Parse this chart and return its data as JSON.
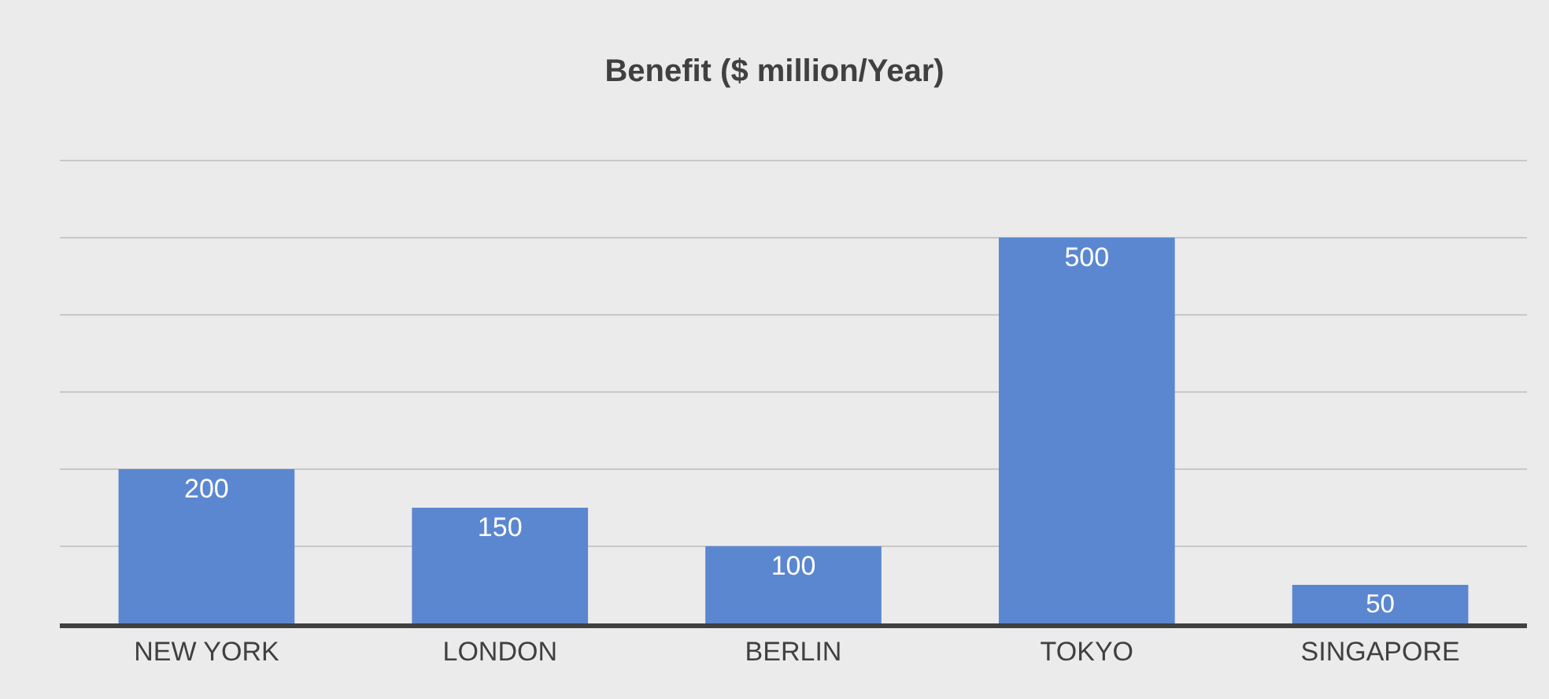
{
  "chart_data": {
    "type": "bar",
    "title": "Benefit ($ million/Year)",
    "categories": [
      "NEW YORK",
      "LONDON",
      "BERLIN",
      "TOKYO",
      "SINGAPORE"
    ],
    "values": [
      200,
      150,
      100,
      500,
      50
    ],
    "color": "#5b87d0",
    "yticks": [
      {
        "value": 0,
        "label": null
      },
      {
        "value": 100,
        "label": null
      },
      {
        "value": 200,
        "label": null
      },
      {
        "value": 300,
        "label": null
      },
      {
        "value": 400,
        "label": null
      },
      {
        "value": 500,
        "label": null
      },
      {
        "value": 600,
        "label": null
      }
    ],
    "tick_labels": "x",
    "grid": "y",
    "data_labels": true,
    "legend": false
  }
}
